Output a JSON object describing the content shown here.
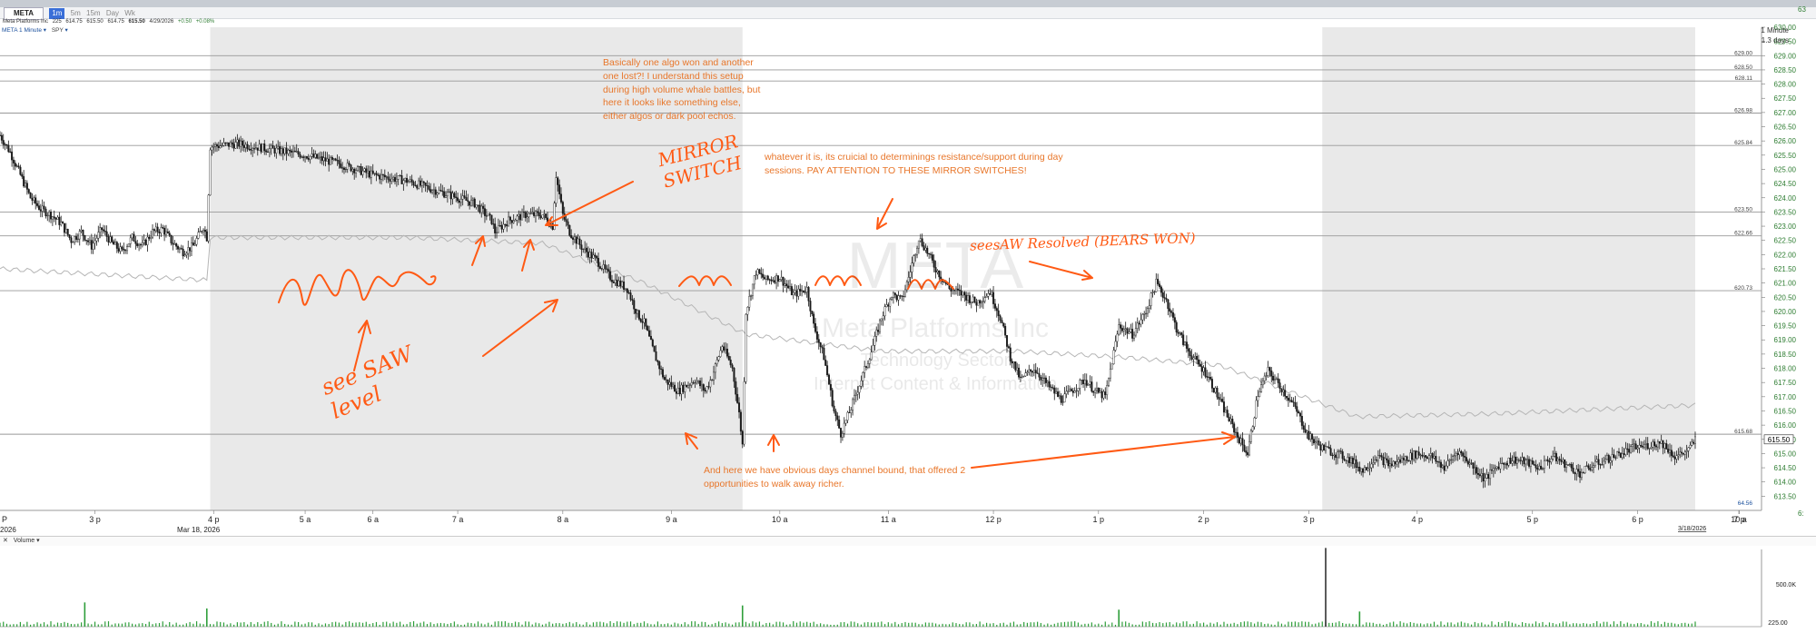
{
  "window": {
    "symbol": "META",
    "company": "Meta Platforms Inc",
    "toolbar_buttons": [
      "1m",
      "5m",
      "15m",
      "Day",
      "Wk"
    ]
  },
  "quote_bar": {
    "description": "Meta Platforms Inc",
    "size": "225",
    "bid": "614.75",
    "ask": "615.50",
    "last": "614.75",
    "last_bold": "615.50",
    "date": "4/29/2026",
    "change": "+0.50",
    "change_pct": "+0.08%"
  },
  "chart_controls": {
    "series_label": "META 1 Minute",
    "compare_label": "SPY"
  },
  "timeframe": {
    "interval": "1 Minute",
    "span": "1.3 days"
  },
  "watermark": {
    "symbol": "META",
    "company": "Meta Platforms Inc",
    "sector": "Technology Sector",
    "industry": "Internet Content & Information"
  },
  "colors": {
    "candle": "#1a1a1a",
    "annotation_text": "#e8762a",
    "handwriting": "#ff5a14",
    "extended_hours_shade": "#e9e9e9",
    "spy_line": "#b5b5b5",
    "price_axis_text": "#2e7d32",
    "volume_bar": "#2e9e3a"
  },
  "volume_panel": {
    "label": "Volume",
    "close_icon": "x-icon",
    "axis_labels": [
      "500.0K",
      "225.00"
    ]
  },
  "annotations": {
    "note1": "Basically one algo won and another one lost?! I understand this setup during high volume whale battles, but here it looks like something else, either algos or dark pool echos.",
    "note2": "whatever it is, its cruicial to determinings resistance/support during day sessions. PAY ATTENTION TO THESE MIRROR SWITCHES!",
    "note3": "And here we have obvious days channel bound, that offered 2 opportunities to walk away richer.",
    "hand_mirror": "MIRROR SWITCH",
    "hand_seesaw": "see SAW level",
    "hand_resolved": "seesAW Resolved (BEARS WON)"
  },
  "chart_data": {
    "type": "candlestick",
    "symbol": "META",
    "interval": "1 Minute",
    "ylim": [
      613.0,
      630.0
    ],
    "y_ticks": [
      613.5,
      614.0,
      614.5,
      615.0,
      615.5,
      616.0,
      616.5,
      617.0,
      617.5,
      618.0,
      618.5,
      619.0,
      619.5,
      620.0,
      620.5,
      621.0,
      621.5,
      622.0,
      622.5,
      623.0,
      623.5,
      624.0,
      624.5,
      625.0,
      625.5,
      626.0,
      626.5,
      627.0,
      627.5,
      628.0,
      628.5,
      629.0,
      629.5,
      630.0
    ],
    "y_top_partial": "63",
    "y_bottom_partial": "6:",
    "x_ticks": [
      "3 p",
      "4 p",
      "5 a",
      "6 a",
      "7 a",
      "8 a",
      "9 a",
      "10 a",
      "11 a",
      "12 p",
      "1 p",
      "2 p",
      "3 p",
      "4 p",
      "5 p",
      "6 p",
      "7 p",
      "10 a"
    ],
    "x_left_partial": "P",
    "date_labels": [
      {
        "text": "Mar 18, 2026",
        "at": "4 p"
      },
      {
        "text": "3/18/2026",
        "at": "right"
      }
    ],
    "date_left_partial": "2026",
    "horizontal_levels": [
      629.0,
      628.5,
      628.11,
      626.98,
      625.84,
      623.5,
      622.66,
      620.73,
      615.68
    ],
    "last_price": 615.5,
    "extra_axis_label": "64.56",
    "price_path": [
      [
        0,
        626.2
      ],
      [
        3,
        625.6
      ],
      [
        6,
        624.8
      ],
      [
        9,
        624.0
      ],
      [
        12,
        623.6
      ],
      [
        15,
        623.4
      ],
      [
        18,
        623.1
      ],
      [
        21,
        622.5
      ],
      [
        24,
        622.8
      ],
      [
        27,
        622.3
      ],
      [
        30,
        622.9
      ],
      [
        33,
        622.4
      ],
      [
        36,
        622.1
      ],
      [
        39,
        622.6
      ],
      [
        42,
        622.3
      ],
      [
        45,
        622.8
      ],
      [
        48,
        622.9
      ],
      [
        51,
        622.4
      ],
      [
        54,
        622.1
      ],
      [
        57,
        622.3
      ],
      [
        60,
        623.0
      ],
      [
        61,
        622.6
      ],
      [
        62,
        625.8
      ],
      [
        70,
        625.9
      ],
      [
        80,
        625.7
      ],
      [
        90,
        625.5
      ],
      [
        100,
        625.2
      ],
      [
        110,
        624.8
      ],
      [
        120,
        624.6
      ],
      [
        130,
        624.2
      ],
      [
        140,
        623.8
      ],
      [
        145,
        623.2
      ],
      [
        146,
        622.8
      ],
      [
        150,
        623.2
      ],
      [
        155,
        623.4
      ],
      [
        160,
        623.4
      ],
      [
        163,
        623.0
      ],
      [
        164,
        624.8
      ],
      [
        166,
        623.4
      ],
      [
        168,
        622.8
      ],
      [
        172,
        622.2
      ],
      [
        176,
        621.8
      ],
      [
        180,
        621.2
      ],
      [
        185,
        620.8
      ],
      [
        188,
        619.9
      ],
      [
        190,
        619.6
      ],
      [
        193,
        618.5
      ],
      [
        196,
        617.6
      ],
      [
        200,
        617.2
      ],
      [
        205,
        617.6
      ],
      [
        208,
        617.2
      ],
      [
        210,
        617.7
      ],
      [
        213,
        618.8
      ],
      [
        216,
        618.0
      ],
      [
        218,
        616.4
      ],
      [
        219,
        615.3
      ],
      [
        220,
        620.0
      ],
      [
        223,
        621.4
      ],
      [
        226,
        621.1
      ],
      [
        230,
        621.2
      ],
      [
        234,
        620.6
      ],
      [
        238,
        620.8
      ],
      [
        240,
        619.5
      ],
      [
        243,
        618.4
      ],
      [
        246,
        616.5
      ],
      [
        248,
        615.7
      ],
      [
        251,
        616.6
      ],
      [
        254,
        617.6
      ],
      [
        257,
        618.6
      ],
      [
        260,
        619.8
      ],
      [
        263,
        620.6
      ],
      [
        266,
        620.4
      ],
      [
        268,
        621.2
      ],
      [
        271,
        622.6
      ],
      [
        273,
        622.2
      ],
      [
        276,
        621.5
      ],
      [
        280,
        620.8
      ],
      [
        284,
        620.6
      ],
      [
        288,
        620.3
      ],
      [
        292,
        620.7
      ],
      [
        295,
        619.8
      ],
      [
        298,
        618.4
      ],
      [
        301,
        617.6
      ],
      [
        305,
        618.0
      ],
      [
        309,
        617.4
      ],
      [
        313,
        616.9
      ],
      [
        317,
        617.3
      ],
      [
        320,
        617.6
      ],
      [
        323,
        617.2
      ],
      [
        326,
        617.0
      ],
      [
        330,
        619.5
      ],
      [
        334,
        619.2
      ],
      [
        338,
        620.0
      ],
      [
        341,
        621.0
      ],
      [
        344,
        620.4
      ],
      [
        347,
        619.4
      ],
      [
        350,
        618.7
      ],
      [
        353,
        618.2
      ],
      [
        356,
        617.8
      ],
      [
        360,
        616.8
      ],
      [
        365,
        615.6
      ],
      [
        368,
        615.0
      ],
      [
        371,
        617.1
      ],
      [
        374,
        617.9
      ],
      [
        378,
        617.3
      ],
      [
        382,
        616.6
      ],
      [
        386,
        615.6
      ],
      [
        390,
        615.2
      ],
      [
        394,
        615.0
      ],
      [
        398,
        614.8
      ],
      [
        402,
        614.4
      ],
      [
        406,
        614.9
      ],
      [
        410,
        614.6
      ],
      [
        414,
        614.8
      ],
      [
        418,
        615.0
      ],
      [
        422,
        614.9
      ],
      [
        426,
        614.5
      ],
      [
        430,
        615.1
      ],
      [
        434,
        614.6
      ],
      [
        438,
        614.1
      ],
      [
        442,
        614.6
      ],
      [
        446,
        614.8
      ],
      [
        450,
        614.7
      ],
      [
        454,
        614.5
      ],
      [
        458,
        614.9
      ],
      [
        462,
        614.6
      ],
      [
        466,
        614.3
      ],
      [
        470,
        614.6
      ],
      [
        474,
        614.8
      ],
      [
        478,
        615.0
      ],
      [
        482,
        615.2
      ],
      [
        486,
        615.3
      ],
      [
        490,
        615.4
      ],
      [
        494,
        614.9
      ],
      [
        498,
        615.1
      ],
      [
        500,
        615.5
      ]
    ],
    "spy_path": [
      [
        0,
        621.5
      ],
      [
        30,
        621.3
      ],
      [
        61,
        621.1
      ],
      [
        62,
        622.6
      ],
      [
        120,
        622.6
      ],
      [
        160,
        622.4
      ],
      [
        190,
        621.0
      ],
      [
        220,
        619.2
      ],
      [
        260,
        618.6
      ],
      [
        300,
        618.6
      ],
      [
        330,
        618.4
      ],
      [
        360,
        618.1
      ],
      [
        380,
        617.2
      ],
      [
        400,
        616.3
      ],
      [
        440,
        616.4
      ],
      [
        480,
        616.6
      ],
      [
        500,
        616.7
      ]
    ],
    "volume_spikes": [
      {
        "t": 25,
        "v": 40
      },
      {
        "t": 61,
        "v": 30
      },
      {
        "t": 219,
        "v": 35
      },
      {
        "t": 330,
        "v": 28
      },
      {
        "t": 391,
        "v": 130
      },
      {
        "t": 401,
        "v": 25
      }
    ]
  }
}
